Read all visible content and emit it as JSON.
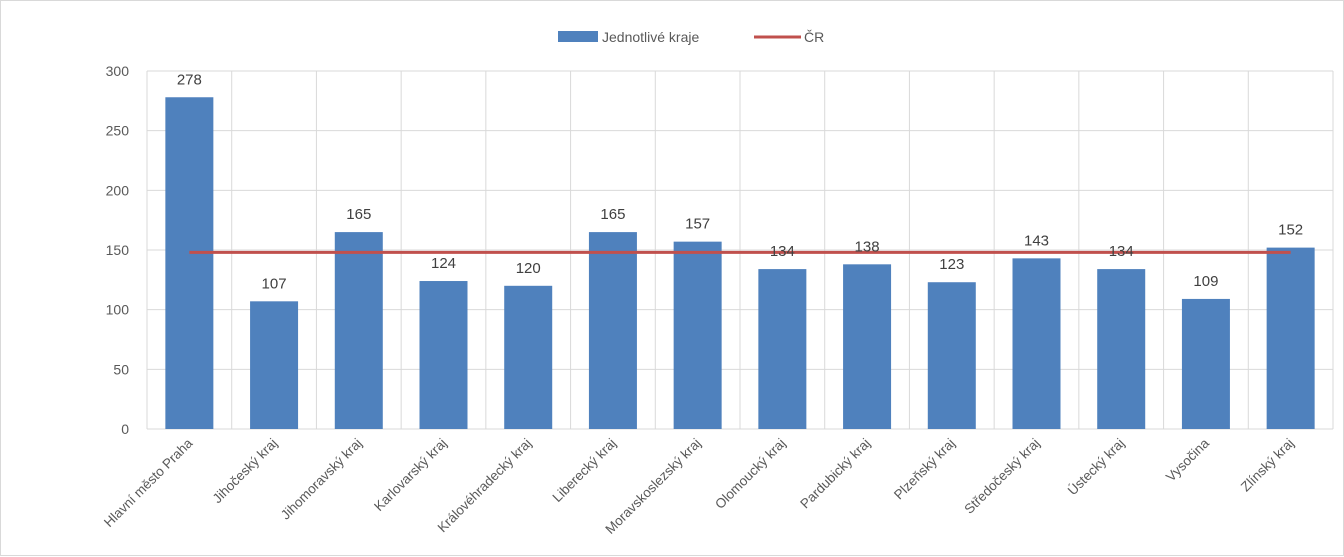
{
  "chart_data": {
    "type": "bar",
    "categories": [
      "Hlavní město Praha",
      "Jihočeský kraj",
      "Jihomoravský kraj",
      "Karlovarský kraj",
      "Královéhradecký kraj",
      "Liberecký kraj",
      "Moravskoslezský kraj",
      "Olomoucký kraj",
      "Pardubický kraj",
      "Plzeňský kraj",
      "Středočeský kraj",
      "Ústecký kraj",
      "Vysočina",
      "Zlínský kraj"
    ],
    "series": [
      {
        "name": "Jednotlivé kraje",
        "type": "bar",
        "color": "#4f81bd",
        "values": [
          278,
          107,
          165,
          124,
          120,
          165,
          157,
          134,
          138,
          123,
          143,
          134,
          109,
          152
        ]
      },
      {
        "name": "ČR",
        "type": "line",
        "color": "#c0504d",
        "values": [
          148,
          148,
          148,
          148,
          148,
          148,
          148,
          148,
          148,
          148,
          148,
          148,
          148,
          148
        ]
      }
    ],
    "ylim": [
      0,
      300
    ],
    "yticks": [
      0,
      50,
      100,
      150,
      200,
      250,
      300
    ],
    "grid": true,
    "legend_position": "top-center",
    "data_labels": true
  }
}
